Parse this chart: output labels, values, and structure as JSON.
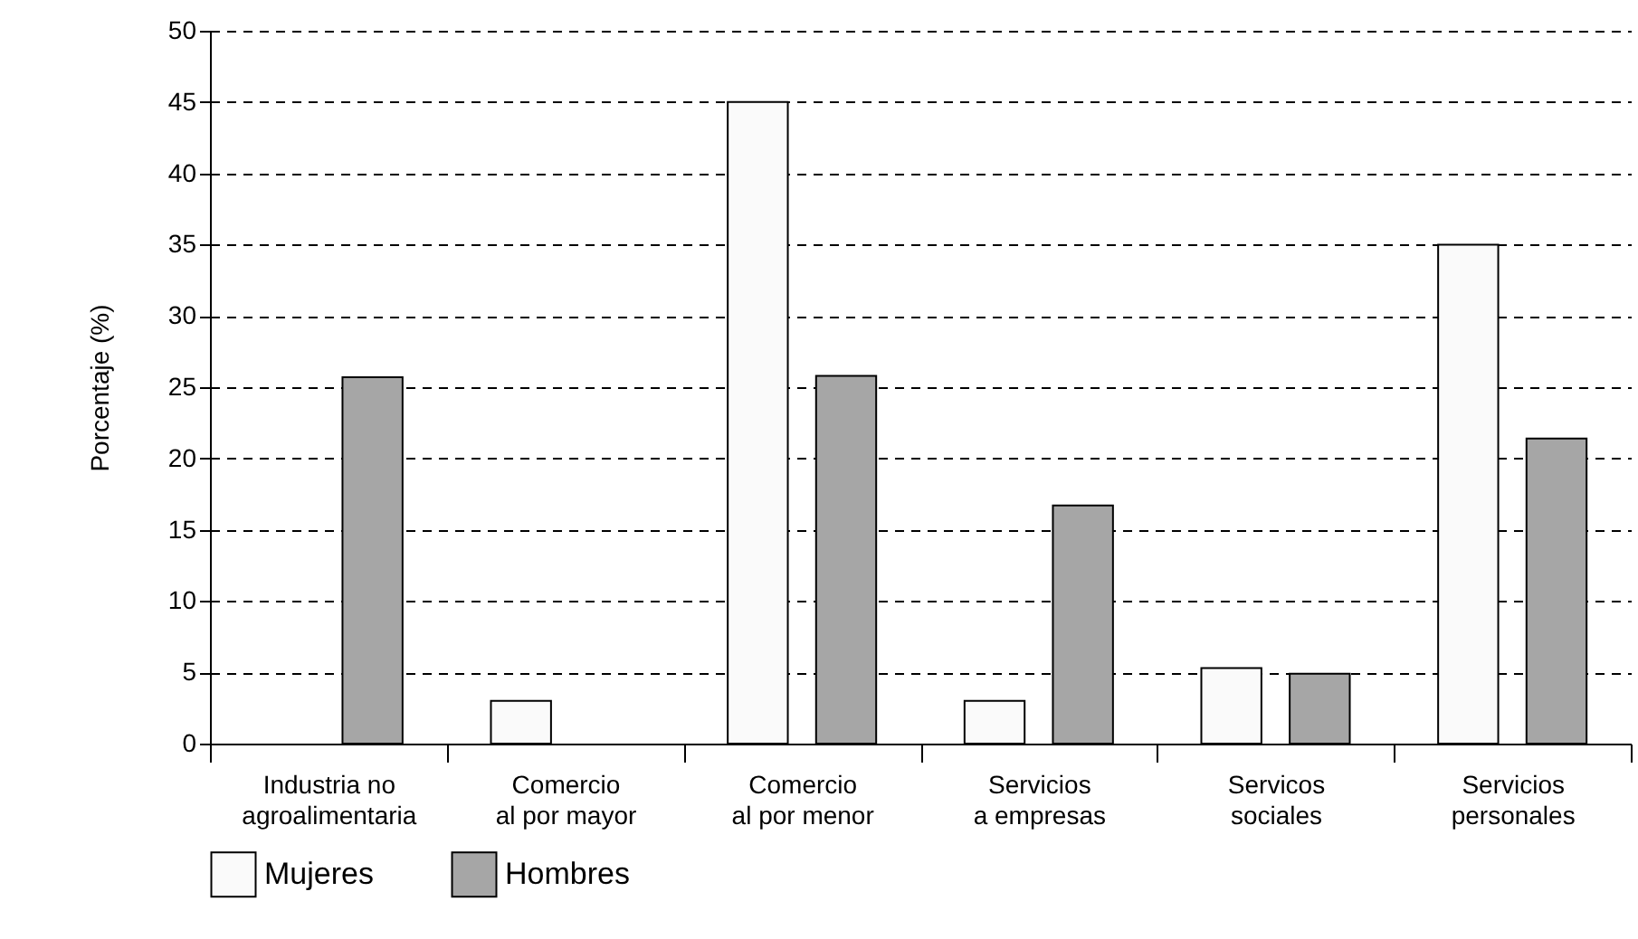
{
  "chart_data": {
    "type": "bar",
    "ylabel": "Porcentaje (%)",
    "categories": [
      "Industria no\nagroalimentaria",
      "Comercio\nal por mayor",
      "Comercio\nal por menor",
      "Servicios\na empresas",
      "Servicos\nsociales",
      "Servicios\npersonales"
    ],
    "series": [
      {
        "name": "Mujeres",
        "color": "#fafafa",
        "values": [
          null,
          3,
          45,
          3,
          5.3,
          35
        ]
      },
      {
        "name": "Hombres",
        "color": "#a6a6a6",
        "values": [
          25.7,
          null,
          25.8,
          16.7,
          4.9,
          21.4
        ]
      }
    ],
    "ylim": [
      0,
      50
    ],
    "yticks": [
      0,
      5,
      10,
      15,
      20,
      25,
      30,
      35,
      40,
      45,
      50
    ],
    "grid": "y",
    "legend": "bottom"
  }
}
